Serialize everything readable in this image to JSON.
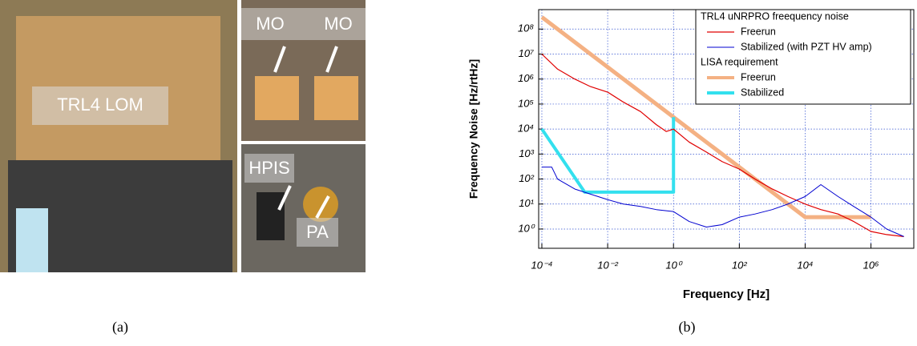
{
  "figure": {
    "photo_labels": [
      "TRL4 LOM",
      "MO",
      "MO",
      "HPIS",
      "PA"
    ],
    "panel_labels": [
      "(a)",
      "(b)"
    ]
  },
  "chart_data": {
    "type": "line",
    "x_label": "Frequency [Hz]",
    "y_label": "Frequency Noise [Hz/rtHz]",
    "log_x": true,
    "log_y": true,
    "grid": true,
    "legend": "upper right",
    "xlim": [
      8e-05,
      20000000
    ],
    "ylim": [
      0.17,
      600000000
    ],
    "xticks": [
      {
        "value": 0.0001,
        "label": "10⁻⁴"
      },
      {
        "value": 0.01,
        "label": "10⁻²"
      },
      {
        "value": 1,
        "label": "10⁰"
      },
      {
        "value": 100,
        "label": "10²"
      },
      {
        "value": 10000,
        "label": "10⁴"
      },
      {
        "value": 1000000,
        "label": "10⁶"
      }
    ],
    "yticks": [
      {
        "value": 1,
        "label": "10⁰"
      },
      {
        "value": 10,
        "label": "10¹"
      },
      {
        "value": 100,
        "label": "10²"
      },
      {
        "value": 1000,
        "label": "10³"
      },
      {
        "value": 10000,
        "label": "10⁴"
      },
      {
        "value": 100000,
        "label": "10⁵"
      },
      {
        "value": 1000000,
        "label": "10⁶"
      },
      {
        "value": 10000000,
        "label": "10⁷"
      },
      {
        "value": 100000000,
        "label": "10⁸"
      }
    ],
    "series_groups": [
      {
        "name": "TRL4 uNRPRO freequency noise",
        "series": [
          {
            "name": "Freerun",
            "color": "#e00000",
            "width": 1.2,
            "x": [
              0.0001,
              0.0003,
              0.001,
              0.003,
              0.01,
              0.03,
              0.1,
              0.3,
              0.6,
              1,
              3,
              10,
              30,
              100,
              300,
              1000,
              3000,
              10000,
              30000,
              100000,
              300000,
              1000000,
              3000000,
              10000000
            ],
            "values": [
              10000000,
              2500000,
              1000000,
              500000,
              300000,
              120000,
              50000,
              15000,
              8000,
              10000,
              3000,
              1200,
              500,
              250,
              100,
              40,
              20,
              10,
              6,
              4,
              2,
              0.8,
              0.6,
              0.5
            ]
          },
          {
            "name": "Stabilized (with PZT HV amp)",
            "color": "#0000d0",
            "width": 1,
            "x": [
              0.0001,
              0.0002,
              0.0003,
              0.001,
              0.003,
              0.01,
              0.03,
              0.1,
              0.3,
              1,
              3,
              10,
              30,
              100,
              300,
              1000,
              3000,
              10000,
              30000,
              100000,
              300000,
              1000000,
              3000000,
              10000000
            ],
            "values": [
              300,
              300,
              100,
              40,
              25,
              15,
              10,
              8,
              6,
              5,
              2,
              1.2,
              1.5,
              3,
              4,
              6,
              10,
              20,
              60,
              20,
              8,
              3,
              1,
              0.5
            ]
          }
        ]
      },
      {
        "name": "LISA requirement",
        "series": [
          {
            "name": "Freerun",
            "color": "#f4b183",
            "width": 5,
            "x": [
              0.0001,
              10000,
              1000000
            ],
            "values": [
              300000000,
              3,
              3
            ]
          },
          {
            "name": "Stabilized",
            "color": "#33e0ee",
            "width": 4,
            "x": [
              0.0001,
              0.002,
              1,
              1
            ],
            "values": [
              10000,
              30,
              30,
              30000
            ]
          }
        ]
      }
    ]
  }
}
